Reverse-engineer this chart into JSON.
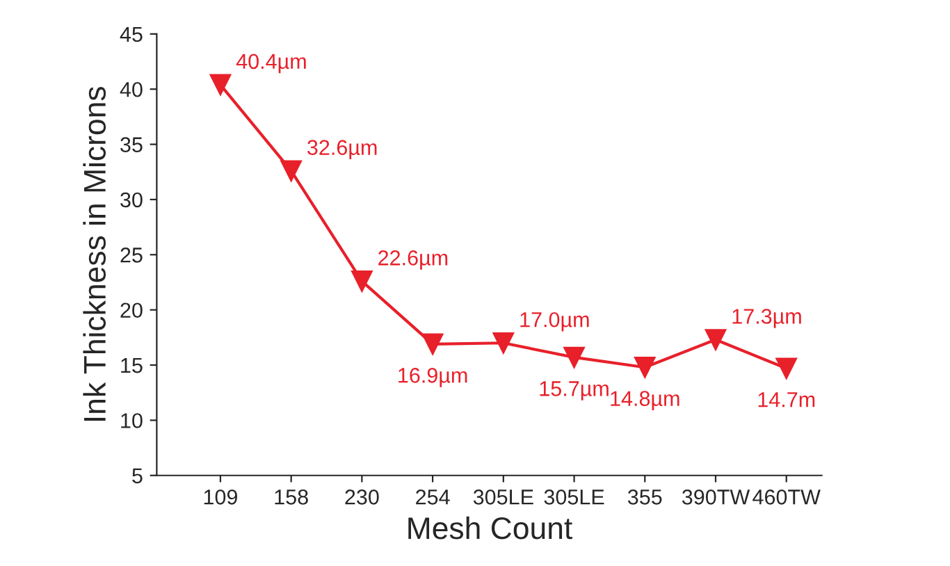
{
  "chart_data": {
    "type": "line",
    "xlabel": "Mesh Count",
    "ylabel": "Ink Thickness in Microns",
    "categories": [
      "109",
      "158",
      "230",
      "254",
      "305LE",
      "305LE",
      "355",
      "390TW",
      "460TW"
    ],
    "series": [
      {
        "color": "#e8202a",
        "values": [
          40.4,
          32.6,
          22.6,
          16.9,
          17.0,
          15.7,
          14.8,
          17.3,
          14.7
        ],
        "value_labels": [
          "40.4µm",
          "32.6µm",
          "22.6µm",
          "16.9µm",
          "17.0µm",
          "15.7µm",
          "14.8µm",
          "17.3µm",
          "14.7m"
        ]
      }
    ],
    "ylim": [
      5,
      45
    ],
    "yticks": [
      5,
      10,
      15,
      20,
      25,
      30,
      35,
      40,
      45
    ],
    "marker": "triangle",
    "line_style": "solid",
    "grid": false,
    "legend": false
  }
}
